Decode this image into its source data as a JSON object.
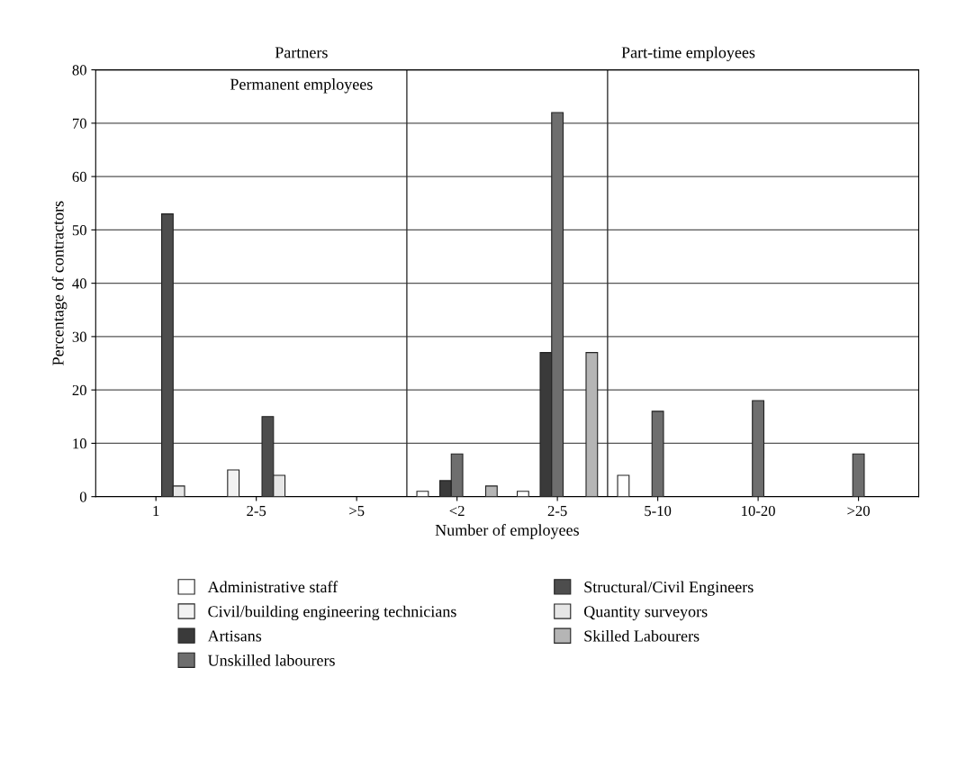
{
  "chart_data": {
    "type": "bar",
    "xlabel": "Number of employees",
    "ylabel": "Percentage of contractors",
    "annotations": [
      "Partners",
      "Permanent employees",
      "Part-time employees"
    ],
    "categories": [
      "1",
      "2-5",
      ">5",
      "<2",
      "2-5",
      "5-10",
      "10-20",
      ">20"
    ],
    "series": [
      {
        "name": "Administrative staff",
        "color": "#ffffff",
        "values": [
          null,
          null,
          null,
          1,
          1,
          4,
          null,
          null
        ]
      },
      {
        "name": "Civil/building engineering technicians",
        "color": "#f2f2f2",
        "values": [
          null,
          5,
          null,
          null,
          null,
          null,
          null,
          null
        ]
      },
      {
        "name": "Artisans",
        "color": "#3a3a3a",
        "values": [
          null,
          null,
          null,
          3,
          27,
          null,
          null,
          null
        ]
      },
      {
        "name": "Unskilled labourers",
        "color": "#6e6e6e",
        "values": [
          null,
          null,
          null,
          8,
          72,
          16,
          18,
          8
        ]
      },
      {
        "name": "Structural/Civil Engineers",
        "color": "#4d4d4d",
        "values": [
          53,
          15,
          null,
          null,
          null,
          null,
          null,
          null
        ]
      },
      {
        "name": "Quantity surveyors",
        "color": "#e6e6e6",
        "values": [
          2,
          4,
          null,
          null,
          null,
          null,
          null,
          null
        ]
      },
      {
        "name": "Skilled Labourers",
        "color": "#b5b5b5",
        "values": [
          null,
          null,
          null,
          2,
          27,
          null,
          null,
          null
        ]
      }
    ],
    "ylim": [
      0,
      80
    ],
    "yticks": [
      0,
      10,
      20,
      30,
      40,
      50,
      60,
      70,
      80
    ],
    "grid": "y",
    "legend": "bottom"
  }
}
